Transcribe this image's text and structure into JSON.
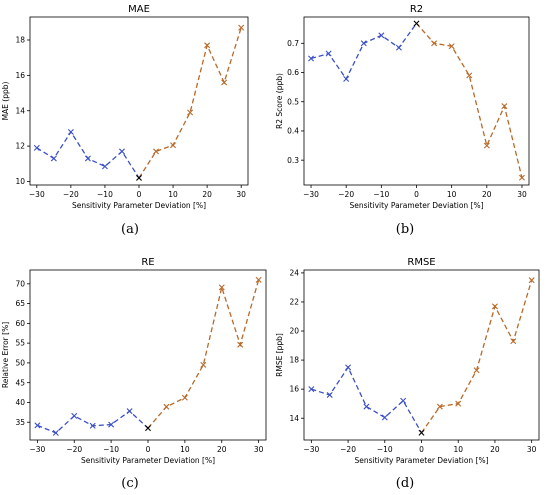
{
  "colors": {
    "negative": "#3a4fc7",
    "positive": "#b8692a",
    "zero": "#000000"
  },
  "captions": [
    "(a)",
    "(b)",
    "(c)",
    "(d)"
  ],
  "chart_data": [
    {
      "type": "line",
      "title": "MAE",
      "xlabel": "Sensitivity Parameter Deviation [%]",
      "ylabel": "MAE (ppb)",
      "x": [
        -30,
        -25,
        -20,
        -15,
        -10,
        -5,
        0,
        5,
        10,
        15,
        20,
        25,
        30
      ],
      "values": [
        11.9,
        11.3,
        12.8,
        11.3,
        10.85,
        11.7,
        10.2,
        11.7,
        12.05,
        13.9,
        17.7,
        15.6,
        18.7
      ],
      "xlim": [
        -32,
        32
      ],
      "ylim": [
        9.8,
        19.3
      ],
      "xticks": [
        -30,
        -20,
        -10,
        0,
        10,
        20,
        30
      ],
      "yticks": [
        10,
        12,
        14,
        16,
        18
      ],
      "tick_decimals": 0,
      "markers": "x",
      "linestyle": "dashed",
      "grid": false
    },
    {
      "type": "line",
      "title": "R2",
      "xlabel": "Sensitivity Parameter Deviation [%]",
      "ylabel": "R2 Score (ppb)",
      "x": [
        -30,
        -25,
        -20,
        -15,
        -10,
        -5,
        0,
        5,
        10,
        15,
        20,
        25,
        30
      ],
      "values": [
        0.648,
        0.665,
        0.578,
        0.7,
        0.727,
        0.685,
        0.768,
        0.7,
        0.69,
        0.59,
        0.35,
        0.485,
        0.24
      ],
      "xlim": [
        -32,
        32
      ],
      "ylim": [
        0.215,
        0.79
      ],
      "xticks": [
        -30,
        -20,
        -10,
        0,
        10,
        20,
        30
      ],
      "yticks": [
        0.3,
        0.4,
        0.5,
        0.6,
        0.7
      ],
      "tick_decimals": 1,
      "markers": "x",
      "linestyle": "dashed",
      "grid": false
    },
    {
      "type": "line",
      "title": "RE",
      "xlabel": "Sensitivity Parameter Deviation [%]",
      "ylabel": "Relative Error [%]",
      "x": [
        -30,
        -25,
        -20,
        -15,
        -10,
        -5,
        0,
        5,
        10,
        15,
        20,
        25,
        30
      ],
      "values": [
        34.2,
        32.3,
        36.6,
        34.1,
        34.4,
        37.8,
        33.5,
        38.9,
        41.2,
        49.5,
        69.1,
        54.6,
        71.0
      ],
      "xlim": [
        -32,
        32
      ],
      "ylim": [
        30.5,
        73.5
      ],
      "xticks": [
        -30,
        -20,
        -10,
        0,
        10,
        20,
        30
      ],
      "yticks": [
        35,
        40,
        45,
        50,
        55,
        60,
        65,
        70
      ],
      "tick_decimals": 0,
      "markers": "x",
      "linestyle": "dashed",
      "grid": false
    },
    {
      "type": "line",
      "title": "RMSE",
      "xlabel": "Sensitivity Parameter Deviation [%]",
      "ylabel": "RMSE [ppb]",
      "x": [
        -30,
        -25,
        -20,
        -15,
        -10,
        -5,
        0,
        5,
        10,
        15,
        20,
        25,
        30
      ],
      "values": [
        16.0,
        15.6,
        17.5,
        14.8,
        14.05,
        15.2,
        13.0,
        14.8,
        15.0,
        17.3,
        21.7,
        19.3,
        23.5
      ],
      "xlim": [
        -32,
        32
      ],
      "ylim": [
        12.5,
        24.2
      ],
      "xticks": [
        -30,
        -20,
        -10,
        0,
        10,
        20,
        30
      ],
      "yticks": [
        14,
        16,
        18,
        20,
        22,
        24
      ],
      "tick_decimals": 0,
      "markers": "x",
      "linestyle": "dashed",
      "grid": false
    }
  ]
}
